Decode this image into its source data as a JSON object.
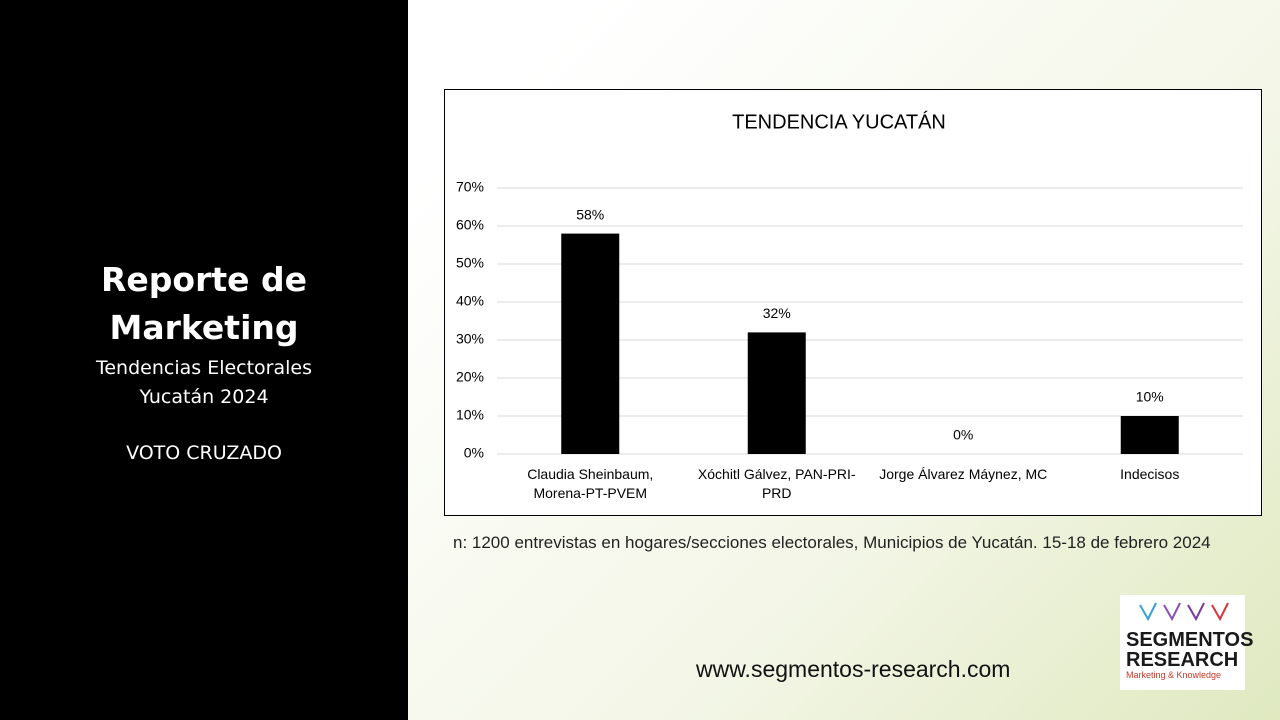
{
  "sidebar": {
    "title": "Reporte de Marketing",
    "subtitle": "Tendencias Electorales Yucatán 2024",
    "label": "VOTO CRUZADO"
  },
  "chart_data": {
    "type": "bar",
    "title": "TENDENCIA  YUCATÁN",
    "categories": [
      "Claudia Sheinbaum, Morena-PT-PVEM",
      "Xóchitl Gálvez, PAN-PRI-PRD",
      "Jorge Álvarez Máynez, MC",
      "Indecisos"
    ],
    "values": [
      58,
      32,
      0,
      10
    ],
    "value_labels": [
      "58%",
      "32%",
      "0%",
      "10%"
    ],
    "color": "#000000",
    "ylim": [
      0,
      70
    ],
    "yticks": [
      {
        "value": 0,
        "label": "0%"
      },
      {
        "value": 10,
        "label": "10%"
      },
      {
        "value": 20,
        "label": "20%"
      },
      {
        "value": 30,
        "label": "30%"
      },
      {
        "value": 40,
        "label": "40%"
      },
      {
        "value": 50,
        "label": "50%"
      },
      {
        "value": 60,
        "label": "60%"
      },
      {
        "value": 70,
        "label": "70%"
      }
    ],
    "grid": true
  },
  "note": "n: 1200  entrevistas en hogares/secciones electorales, Municipios de Yucatán. 15-18 de febrero 2024",
  "website": "www.segmentos-research.com",
  "logo": {
    "line1": "SEGMENTOS",
    "line2": "RESEARCH",
    "tagline": "Marketing & Knowledge"
  }
}
